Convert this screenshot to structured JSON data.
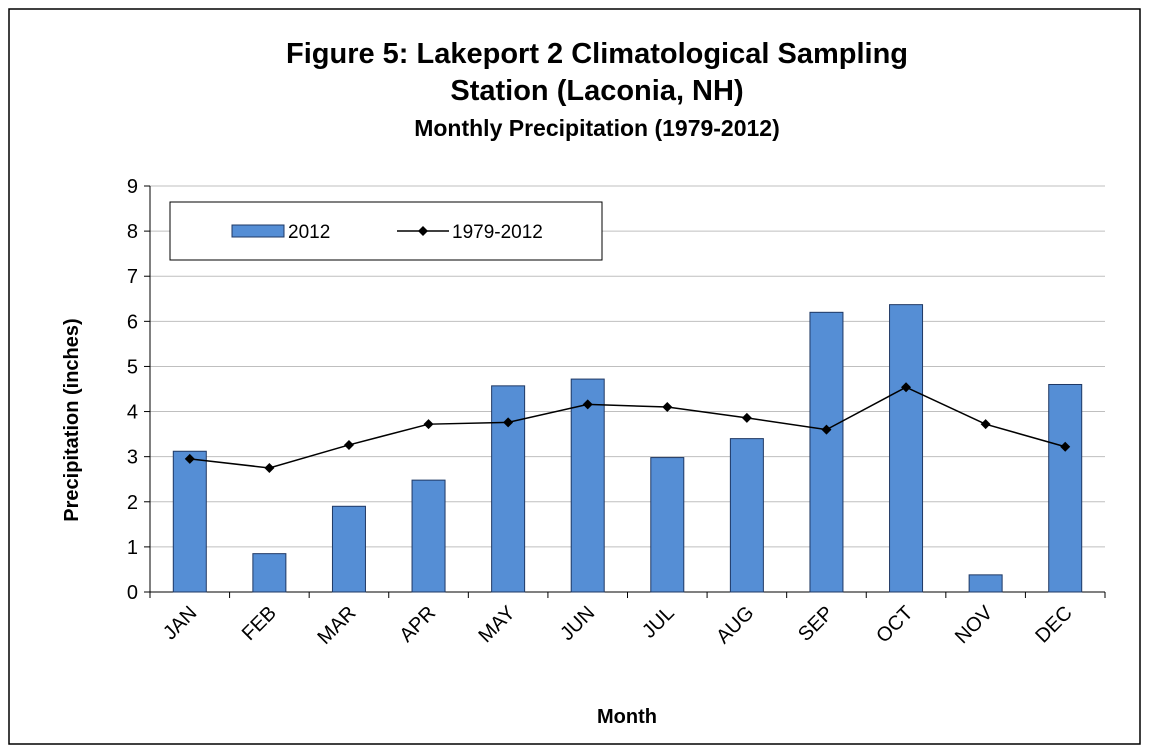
{
  "chart_data": {
    "type": "bar",
    "title": [
      "Figure 5: Lakeport 2 Climatological Sampling",
      "Station (Laconia, NH)"
    ],
    "subtitle": "Monthly Precipitation (1979-2012)",
    "x_label": "Month",
    "y_label": "Precipitation (inches)",
    "categories": [
      "JAN",
      "FEB",
      "MAR",
      "APR",
      "MAY",
      "JUN",
      "JUL",
      "AUG",
      "SEP",
      "OCT",
      "NOV",
      "DEC"
    ],
    "series": [
      {
        "name": "2012",
        "type": "bar",
        "color": "#558ed5",
        "values": [
          3.12,
          0.85,
          1.9,
          2.48,
          4.57,
          4.72,
          2.98,
          3.4,
          6.2,
          6.37,
          0.38,
          4.6
        ]
      },
      {
        "name": "1979-2012",
        "type": "line",
        "color": "#000000",
        "values": [
          2.95,
          2.75,
          3.26,
          3.72,
          3.76,
          4.16,
          4.1,
          3.86,
          3.6,
          4.54,
          3.72,
          3.22
        ]
      }
    ],
    "ylim": [
      0,
      9
    ],
    "yticks": [
      0,
      1,
      2,
      3,
      4,
      5,
      6,
      7,
      8,
      9
    ],
    "grid": true,
    "legend": "top-left"
  }
}
